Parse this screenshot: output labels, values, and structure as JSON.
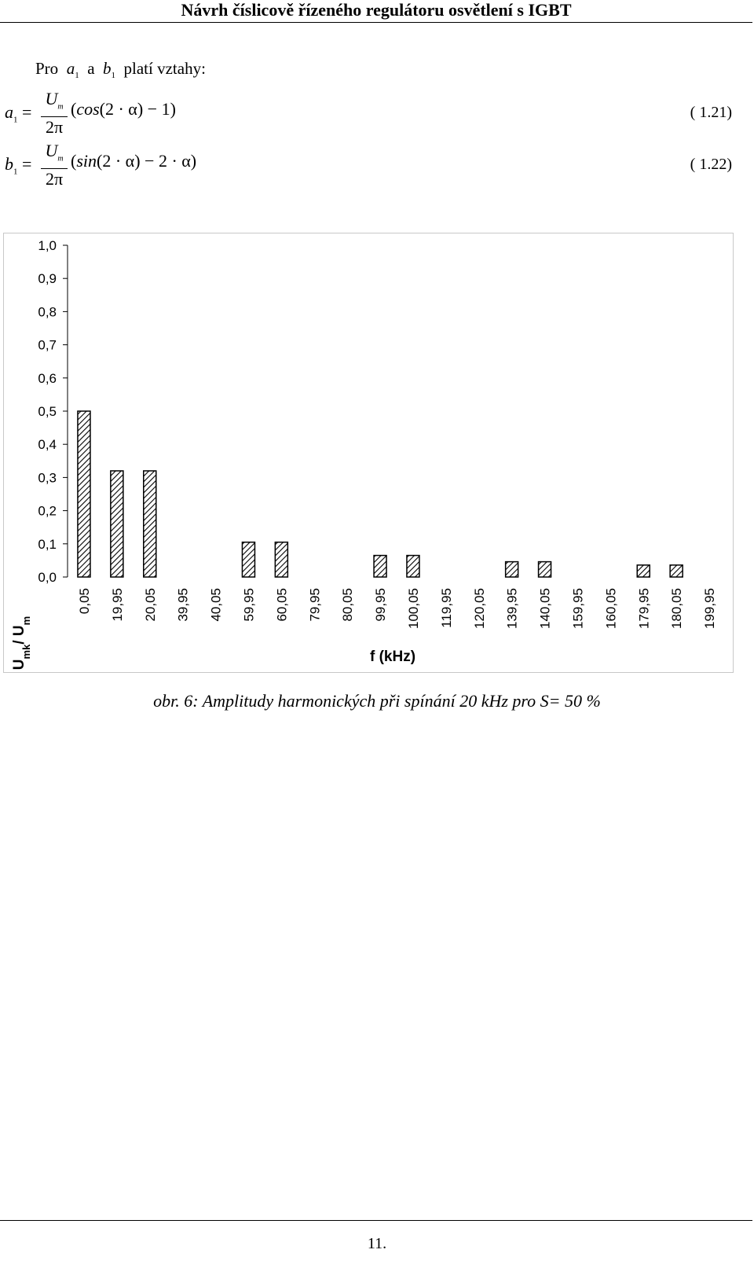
{
  "header": {
    "title": "Návrh číslicově řízeného regulátoru osvětlení s IGBT"
  },
  "intro": {
    "pro": "Pro",
    "a": "a",
    "a_sub": "1",
    "and": "a",
    "b": "b",
    "b_sub": "1",
    "rest": "platí vztahy:"
  },
  "equations": [
    {
      "lhs": "a",
      "lhs_sub": "1",
      "eq": "=",
      "num": "U",
      "num_sub": "m",
      "den": "2π",
      "expr_open": "(",
      "func": "cos",
      "inner": "(2 · α)",
      "tail": " − 1)",
      "label": "( 1.21)"
    },
    {
      "lhs": "b",
      "lhs_sub": "1",
      "eq": "=",
      "num": "U",
      "num_sub": "m",
      "den": "2π",
      "expr_open": "(",
      "func": "sin",
      "inner": "(2 · α)",
      "tail": " − 2 · α)",
      "label": "( 1.22)"
    }
  ],
  "chart_data": {
    "type": "bar",
    "categories": [
      "0,05",
      "19,95",
      "20,05",
      "39,95",
      "40,05",
      "59,95",
      "60,05",
      "79,95",
      "80,05",
      "99,95",
      "100,05",
      "119,95",
      "120,05",
      "139,95",
      "140,05",
      "159,95",
      "160,05",
      "179,95",
      "180,05",
      "199,95"
    ],
    "values": [
      0.5,
      0.32,
      0.32,
      0,
      0,
      0.105,
      0.105,
      0,
      0,
      0.065,
      0.065,
      0,
      0,
      0.046,
      0.046,
      0,
      0,
      0.036,
      0.036,
      0
    ],
    "xlabel": "f (kHz)",
    "ylabel": "U",
    "ylabel_sub1": "mk",
    "ylabel_mid": "/ U",
    "ylabel_sub2": "m",
    "ylim": [
      0,
      1
    ],
    "yticks": [
      "0,0",
      "0,1",
      "0,2",
      "0,3",
      "0,4",
      "0,5",
      "0,6",
      "0,7",
      "0,8",
      "0,9",
      "1,0"
    ],
    "bar_fill": "hatched",
    "grid": false,
    "colors": {
      "bar_stroke": "#000000",
      "hatch": "#000000",
      "axis": "#000000",
      "frame": "#c8c8c8"
    }
  },
  "caption": "obr. 6: Amplitudy harmonických při spínání 20 kHz pro S= 50 %",
  "footer": {
    "page": "11."
  }
}
